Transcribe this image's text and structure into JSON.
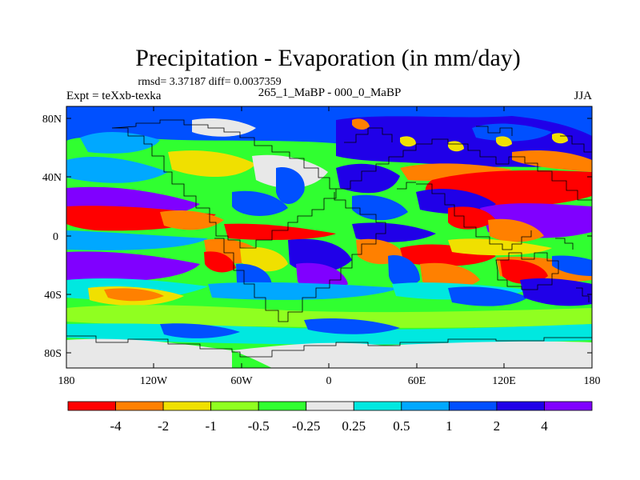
{
  "title": "Precipitation - Evaporation (in mm/day)",
  "stats_line": "rmsd= 3.37187 diff= 0.0037359",
  "left_label": "Expt = teXxb-texka",
  "center_label": "265_1_MaBP - 000_0_MaBP",
  "right_label": "JJA",
  "lat_ticks": [
    "80N",
    "40N",
    "0",
    "40S",
    "80S"
  ],
  "lon_ticks": [
    "180",
    "120W",
    "60W",
    "0",
    "60E",
    "120E",
    "180"
  ],
  "colorbar": {
    "labels": [
      "-4",
      "-2",
      "-1",
      "-0.5",
      "-0.25",
      "0.25",
      "0.5",
      "1",
      "2",
      "4"
    ],
    "colors": [
      "#ff0000",
      "#ff8000",
      "#f0e000",
      "#90ff20",
      "#30ff30",
      "#e8e8e8",
      "#00e8e0",
      "#00a8ff",
      "#0050ff",
      "#2000e8",
      "#8000ff"
    ]
  },
  "palette": {
    "deep_red": "#ff1010",
    "orange": "#ff7a00",
    "yellow": "#f0e000",
    "lime": "#90ff20",
    "green": "#30ff30",
    "white": "#e8e8e8",
    "cyan": "#00e8e0",
    "sky": "#00a8ff",
    "blue": "#0050ff",
    "dark_blue": "#2000e8",
    "violet": "#8000ff"
  }
}
